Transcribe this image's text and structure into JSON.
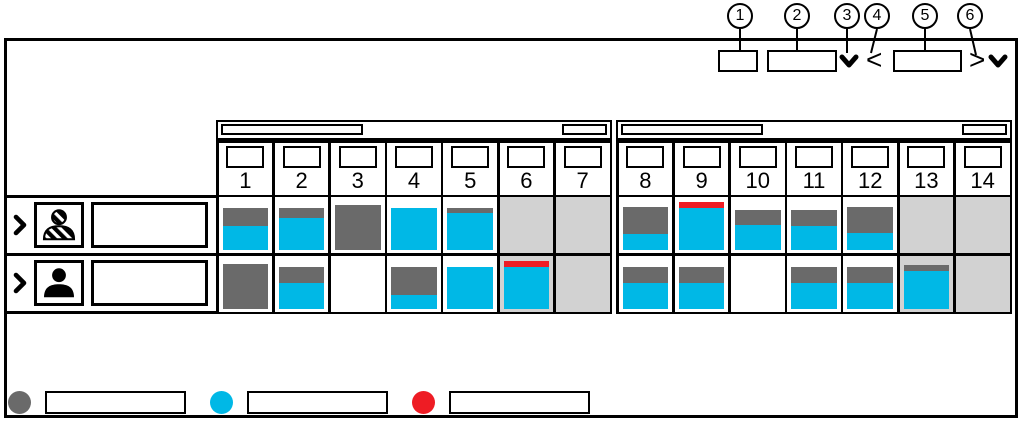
{
  "callouts": [
    "1",
    "2",
    "3",
    "4",
    "5",
    "6"
  ],
  "toolbar": {
    "prev_arrow": "<",
    "next_arrow": ">",
    "icons": [
      "chevron-down-icon",
      "chevron-down-icon"
    ]
  },
  "schedule": {
    "weeks": [
      {
        "days": [
          "1",
          "2",
          "3",
          "4",
          "5",
          "6",
          "7"
        ]
      },
      {
        "days": [
          "8",
          "9",
          "10",
          "11",
          "12",
          "13",
          "14"
        ]
      }
    ],
    "rows": [
      {
        "icon": "striped-person-icon",
        "name": "",
        "cells": [
          {
            "bg": "work",
            "block": {
              "height": 0.8,
              "segments": [
                {
                  "color": "gray",
                  "size": 0.42
                },
                {
                  "color": "cyan",
                  "size": 0.58
                }
              ]
            }
          },
          {
            "bg": "work",
            "block": {
              "height": 0.8,
              "segments": [
                {
                  "color": "gray",
                  "size": 0.24
                },
                {
                  "color": "cyan",
                  "size": 0.76
                }
              ]
            }
          },
          {
            "bg": "work",
            "block": {
              "height": 0.86,
              "segments": [
                {
                  "color": "gray",
                  "size": 1
                }
              ]
            }
          },
          {
            "bg": "work",
            "block": {
              "height": 0.8,
              "segments": [
                {
                  "color": "cyan",
                  "size": 1
                }
              ]
            }
          },
          {
            "bg": "work",
            "block": {
              "height": 0.8,
              "segments": [
                {
                  "color": "gray",
                  "size": 0.13
                },
                {
                  "color": "cyan",
                  "size": 0.87
                }
              ]
            }
          },
          {
            "bg": "nonwork",
            "block": null
          },
          {
            "bg": "nonwork",
            "block": null
          },
          {
            "bg": "work",
            "block": {
              "height": 0.82,
              "segments": [
                {
                  "color": "gray",
                  "size": 0.62
                },
                {
                  "color": "cyan",
                  "size": 0.38
                }
              ]
            }
          },
          {
            "bg": "work",
            "block": {
              "height": 0.93,
              "segments": [
                {
                  "color": "red",
                  "size": 0.13
                },
                {
                  "color": "cyan",
                  "size": 0.87
                }
              ]
            }
          },
          {
            "bg": "work",
            "block": {
              "height": 0.76,
              "segments": [
                {
                  "color": "gray",
                  "size": 0.38
                },
                {
                  "color": "cyan",
                  "size": 0.62
                }
              ]
            }
          },
          {
            "bg": "work",
            "block": {
              "height": 0.76,
              "segments": [
                {
                  "color": "gray",
                  "size": 0.4
                },
                {
                  "color": "cyan",
                  "size": 0.6
                }
              ]
            }
          },
          {
            "bg": "work",
            "block": {
              "height": 0.82,
              "segments": [
                {
                  "color": "gray",
                  "size": 0.6
                },
                {
                  "color": "cyan",
                  "size": 0.4
                }
              ]
            }
          },
          {
            "bg": "nonwork",
            "block": null
          },
          {
            "bg": "nonwork",
            "block": null
          }
        ]
      },
      {
        "icon": "person-icon",
        "name": "",
        "cells": [
          {
            "bg": "work",
            "block": {
              "height": 0.86,
              "segments": [
                {
                  "color": "gray",
                  "size": 1
                }
              ]
            }
          },
          {
            "bg": "work",
            "block": {
              "height": 0.8,
              "segments": [
                {
                  "color": "gray",
                  "size": 0.4
                },
                {
                  "color": "cyan",
                  "size": 0.6
                }
              ]
            }
          },
          {
            "bg": "work",
            "block": null
          },
          {
            "bg": "work",
            "block": {
              "height": 0.8,
              "segments": [
                {
                  "color": "gray",
                  "size": 0.68
                },
                {
                  "color": "cyan",
                  "size": 0.32
                }
              ]
            }
          },
          {
            "bg": "work",
            "block": {
              "height": 0.8,
              "segments": [
                {
                  "color": "cyan",
                  "size": 1
                }
              ]
            }
          },
          {
            "bg": "nonwork",
            "block": {
              "height": 0.93,
              "segments": [
                {
                  "color": "red",
                  "size": 0.13
                },
                {
                  "color": "cyan",
                  "size": 0.87
                }
              ]
            }
          },
          {
            "bg": "nonwork",
            "block": null
          },
          {
            "bg": "work",
            "block": {
              "height": 0.8,
              "segments": [
                {
                  "color": "gray",
                  "size": 0.4
                },
                {
                  "color": "cyan",
                  "size": 0.6
                }
              ]
            }
          },
          {
            "bg": "work",
            "block": {
              "height": 0.8,
              "segments": [
                {
                  "color": "gray",
                  "size": 0.4
                },
                {
                  "color": "cyan",
                  "size": 0.6
                }
              ]
            }
          },
          {
            "bg": "work",
            "block": null
          },
          {
            "bg": "work",
            "block": {
              "height": 0.8,
              "segments": [
                {
                  "color": "gray",
                  "size": 0.4
                },
                {
                  "color": "cyan",
                  "size": 0.6
                }
              ]
            }
          },
          {
            "bg": "work",
            "block": {
              "height": 0.8,
              "segments": [
                {
                  "color": "gray",
                  "size": 0.4
                },
                {
                  "color": "cyan",
                  "size": 0.6
                }
              ]
            }
          },
          {
            "bg": "nonwork",
            "block": {
              "height": 0.84,
              "segments": [
                {
                  "color": "gray",
                  "size": 0.15
                },
                {
                  "color": "cyan",
                  "size": 0.85
                }
              ]
            }
          },
          {
            "bg": "nonwork",
            "block": null
          }
        ]
      }
    ]
  },
  "legend": {
    "items": [
      {
        "color": "#6a6a6a",
        "label": ""
      },
      {
        "color": "#00b8e6",
        "label": ""
      },
      {
        "color": "#ee1c24",
        "label": ""
      }
    ]
  },
  "colors": {
    "gray": "#6a6a6a",
    "cyan": "#00b8e6",
    "red": "#ee1c24",
    "nonworking": "#d2d2d2",
    "line": "#000000"
  }
}
